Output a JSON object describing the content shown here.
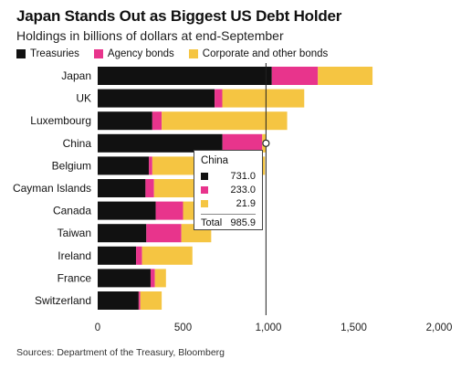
{
  "title": "Japan Stands Out as Biggest US Debt Holder",
  "subtitle": "Holdings in billions of dollars at end-September",
  "source": "Sources: Department of the Treasury, Bloomberg",
  "legend": [
    {
      "label": "Treasuries",
      "color": "#111111"
    },
    {
      "label": "Agency bonds",
      "color": "#e8348c"
    },
    {
      "label": "Corporate and other bonds",
      "color": "#f5c542"
    }
  ],
  "tooltip": {
    "title": "China",
    "rows": [
      {
        "value": "731.0",
        "color": "#111111"
      },
      {
        "value": "233.0",
        "color": "#e8348c"
      },
      {
        "value": "21.9",
        "color": "#f5c542"
      }
    ],
    "total_label": "Total",
    "total_value": "985.9"
  },
  "chart_data": {
    "type": "bar",
    "orientation": "horizontal",
    "stacked": true,
    "categories": [
      "Japan",
      "UK",
      "Luxembourg",
      "China",
      "Belgium",
      "Cayman Islands",
      "Canada",
      "Taiwan",
      "Ireland",
      "France",
      "Switzerland"
    ],
    "series": [
      {
        "name": "Treasuries",
        "color": "#111111",
        "values": [
          1020,
          685,
          320,
          731,
          300,
          280,
          340,
          285,
          225,
          310,
          240
        ]
      },
      {
        "name": "Agency bonds",
        "color": "#e8348c",
        "values": [
          270,
          45,
          55,
          233,
          20,
          50,
          160,
          205,
          35,
          25,
          10
        ]
      },
      {
        "name": "Corporate and other bonds",
        "color": "#f5c542",
        "values": [
          320,
          480,
          735,
          21.9,
          660,
          520,
          185,
          175,
          295,
          65,
          125
        ]
      }
    ],
    "xlim": [
      0,
      2000
    ],
    "xticks": [
      0,
      500,
      1000,
      1500,
      2000
    ],
    "xtick_labels": [
      "0",
      "500",
      "1,000",
      "1,500",
      "2,000"
    ],
    "gridlines": false,
    "legend_position": "top-left",
    "highlight": {
      "category": "China",
      "x": 985.9
    }
  }
}
